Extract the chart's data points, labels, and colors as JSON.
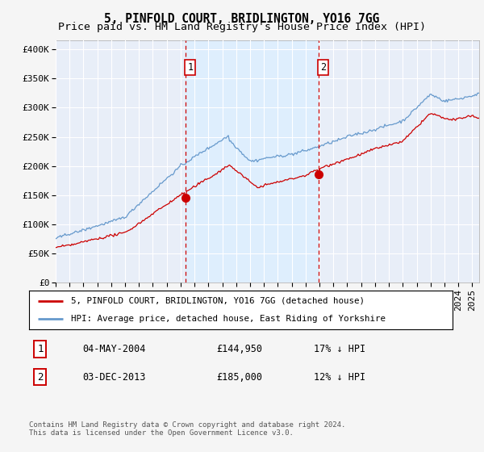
{
  "title": "5, PINFOLD COURT, BRIDLINGTON, YO16 7GG",
  "subtitle": "Price paid vs. HM Land Registry's House Price Index (HPI)",
  "ylabel_ticks": [
    "£0",
    "£50K",
    "£100K",
    "£150K",
    "£200K",
    "£250K",
    "£300K",
    "£350K",
    "£400K"
  ],
  "ytick_values": [
    0,
    50000,
    100000,
    150000,
    200000,
    250000,
    300000,
    350000,
    400000
  ],
  "ylim": [
    0,
    415000
  ],
  "xlim_start": 1995.0,
  "xlim_end": 2025.5,
  "hpi_color": "#6699cc",
  "price_color": "#cc0000",
  "figure_bg": "#f2f2f2",
  "plot_bg_color": "#e8eef8",
  "grid_color": "#ffffff",
  "shade_color": "#ddeeff",
  "transaction1_x": 2004.34,
  "transaction1_y": 144950,
  "transaction2_x": 2013.92,
  "transaction2_y": 185000,
  "vline_color": "#cc0000",
  "legend_label_price": "5, PINFOLD COURT, BRIDLINGTON, YO16 7GG (detached house)",
  "legend_label_hpi": "HPI: Average price, detached house, East Riding of Yorkshire",
  "table_row1": [
    "1",
    "04-MAY-2004",
    "£144,950",
    "17% ↓ HPI"
  ],
  "table_row2": [
    "2",
    "03-DEC-2013",
    "£185,000",
    "12% ↓ HPI"
  ],
  "footer": "Contains HM Land Registry data © Crown copyright and database right 2024.\nThis data is licensed under the Open Government Licence v3.0.",
  "title_fontsize": 10.5,
  "subtitle_fontsize": 9.5,
  "tick_fontsize": 8,
  "noise_seed": 42
}
